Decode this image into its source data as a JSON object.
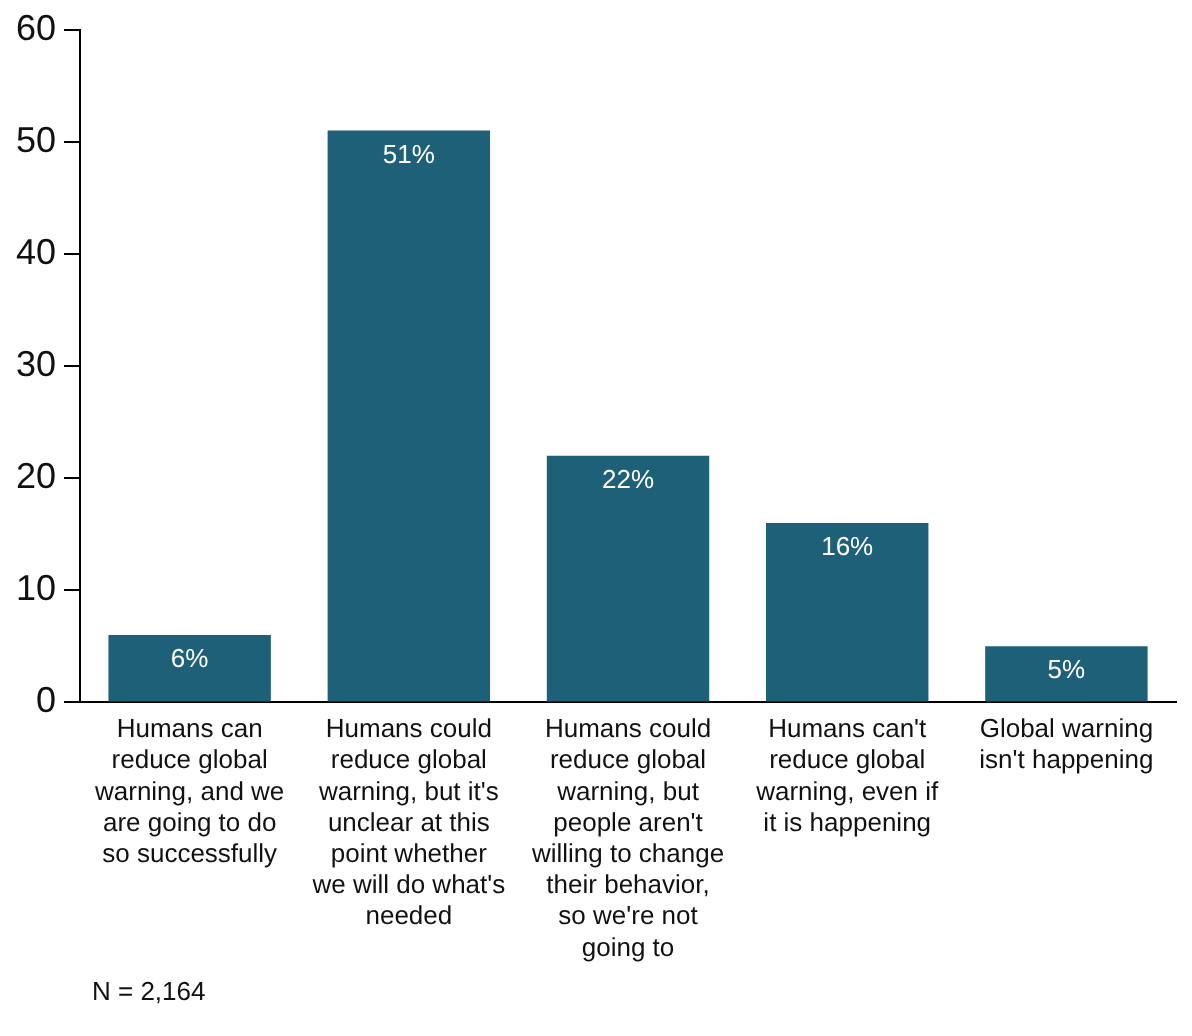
{
  "chart_data": {
    "type": "bar",
    "categories": [
      "Humans can reduce global warning, and we are going to do so successfully",
      "Humans could reduce global warning, but it's unclear at this point whether we will do what's needed",
      "Humans could reduce global warning, but people aren't willing to change their behavior, so we're not going to",
      "Humans can't reduce global warning, even if it is happening",
      "Global warning isn't happening"
    ],
    "values": [
      6,
      51,
      22,
      16,
      5
    ],
    "value_labels": [
      "6%",
      "51%",
      "22%",
      "16%",
      "5%"
    ],
    "color": "#1d6078",
    "ylim": [
      0,
      60
    ],
    "yticks": [
      0,
      10,
      20,
      30,
      40,
      50,
      60
    ],
    "grid": false,
    "legend": false,
    "annotations": [
      "N = 2,164"
    ]
  }
}
